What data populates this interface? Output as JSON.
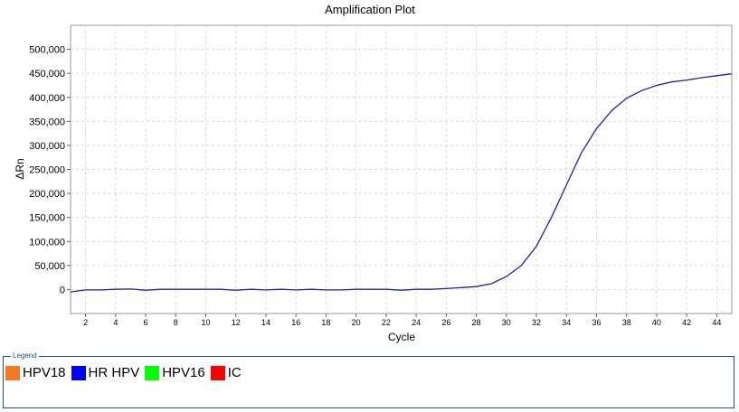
{
  "chart_data": {
    "type": "line",
    "title": "Amplification Plot",
    "xlabel": "Cycle",
    "ylabel": "ΔRn",
    "xlim": [
      1,
      45
    ],
    "ylim": [
      -50000,
      550000
    ],
    "x_ticks": [
      2,
      4,
      6,
      8,
      10,
      12,
      14,
      16,
      18,
      20,
      22,
      24,
      26,
      28,
      30,
      32,
      34,
      36,
      38,
      40,
      42,
      44
    ],
    "y_ticks": [
      0,
      50000,
      100000,
      150000,
      200000,
      250000,
      300000,
      350000,
      400000,
      450000,
      500000
    ],
    "y_tick_labels": [
      "0",
      "50,000",
      "100,000",
      "150,000",
      "200,000",
      "250,000",
      "300,000",
      "350,000",
      "400,000",
      "450,000",
      "500,000"
    ],
    "grid": true,
    "series": [
      {
        "name": "HR HPV",
        "color": "#1f1fb0",
        "x": [
          1,
          2,
          3,
          4,
          5,
          6,
          7,
          8,
          9,
          10,
          11,
          12,
          13,
          14,
          15,
          16,
          17,
          18,
          19,
          20,
          21,
          22,
          23,
          24,
          25,
          26,
          27,
          28,
          29,
          30,
          31,
          32,
          33,
          34,
          35,
          36,
          37,
          38,
          39,
          40,
          41,
          42,
          43,
          44,
          45
        ],
        "y": [
          -5000,
          -1000,
          -1000,
          500,
          1000,
          -1500,
          500,
          500,
          500,
          500,
          500,
          -1500,
          500,
          -1000,
          500,
          -1000,
          500,
          -1000,
          -1000,
          500,
          500,
          500,
          -1500,
          500,
          500,
          2000,
          4000,
          6000,
          12000,
          27000,
          50000,
          90000,
          150000,
          218000,
          285000,
          335000,
          372000,
          398000,
          414000,
          425000,
          432000,
          436000,
          441000,
          445000,
          449000
        ]
      }
    ]
  },
  "legend": {
    "title": "Legend",
    "items": [
      {
        "label": "HPV18",
        "color": "#f47920"
      },
      {
        "label": "HR HPV",
        "color": "#0000ff"
      },
      {
        "label": "HPV16",
        "color": "#00ff00"
      },
      {
        "label": "IC",
        "color": "#ff0000"
      }
    ]
  }
}
